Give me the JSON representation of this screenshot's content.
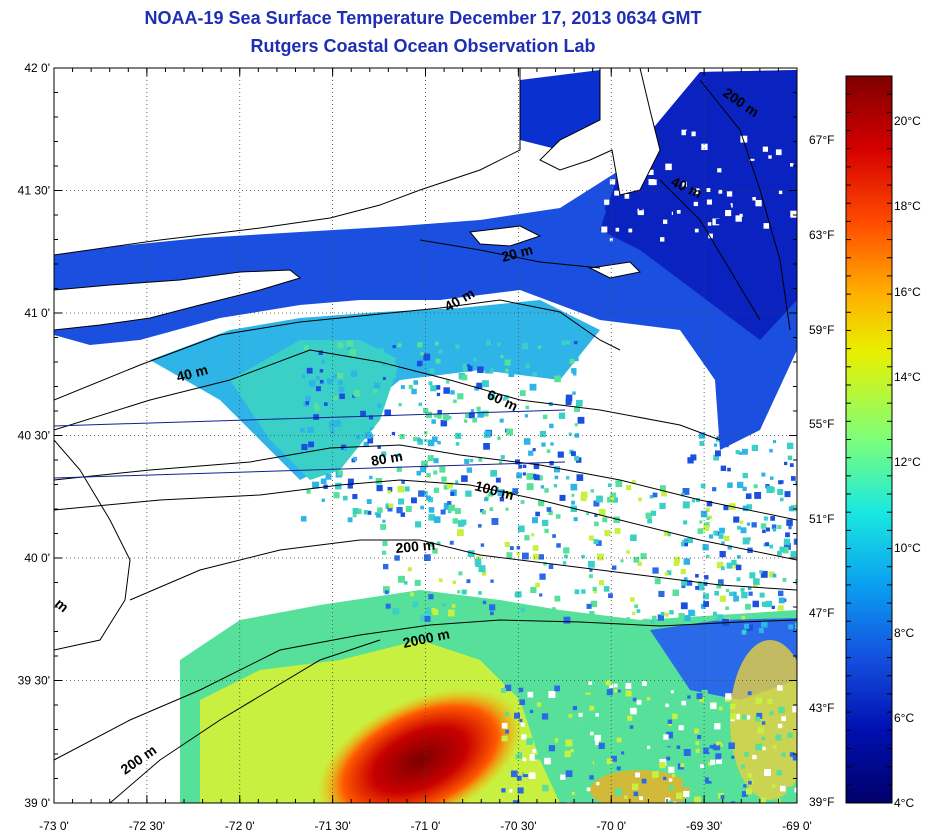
{
  "header": {
    "title": "NOAA-19 Sea Surface Temperature December 17, 2013 0634 GMT",
    "subtitle": "Rutgers Coastal Ocean Observation Lab"
  },
  "axes": {
    "latitude_ticks": [
      "42 0'",
      "41 30'",
      "41 0'",
      "40 30'",
      "40 0'",
      "39 30'",
      "39 0'"
    ],
    "longitude_ticks": [
      "-73 0'",
      "-72 30'",
      "-72 0'",
      "-71 30'",
      "-71 0'",
      "-70 30'",
      "-70 0'",
      "-69 30'",
      "-69 0'"
    ],
    "lat_range": [
      39.0,
      42.0
    ],
    "lon_range": [
      -73.0,
      -69.0
    ],
    "grid": true
  },
  "colorbar": {
    "celsius_labels": [
      "20°C",
      "18°C",
      "16°C",
      "14°C",
      "12°C",
      "10°C",
      "8°C",
      "6°C",
      "4°C"
    ],
    "fahrenheit_labels": [
      "67°F",
      "63°F",
      "59°F",
      "55°F",
      "51°F",
      "47°F",
      "43°F",
      "39°F"
    ],
    "range_c": [
      4,
      21.5
    ],
    "colors": [
      "#7f0000",
      "#d40000",
      "#ff4a00",
      "#ffb000",
      "#e8f000",
      "#7cff7a",
      "#19e8e0",
      "#0aa0f0",
      "#1550e0",
      "#0010b0",
      "#00006a"
    ]
  },
  "contours": {
    "labels": [
      "200 m",
      "40 m",
      "20 m",
      "40 m",
      "40 m",
      "60 m",
      "80 m",
      "100 m",
      "200 m",
      "2000 m",
      "200 m",
      "m"
    ]
  },
  "colors": {
    "title": "#1f2fb4",
    "land": "#ffffff",
    "nodata": "#ffffff"
  }
}
